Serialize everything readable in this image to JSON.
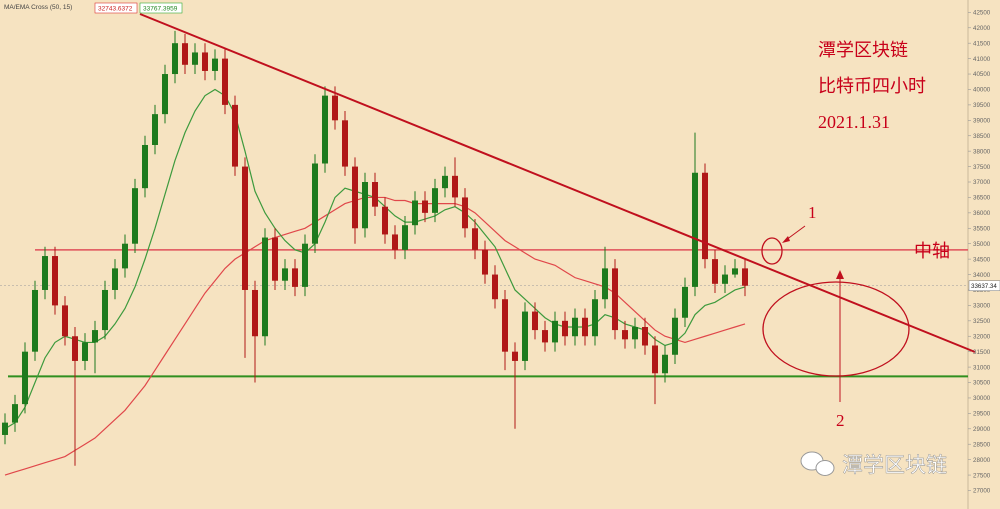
{
  "chart_data": {
    "type": "candlestick",
    "indicator_label": "MA/EMA Cross (50, 15)",
    "indicator_values": [
      32743.6372,
      33767.3959
    ],
    "title": "潭学区块链",
    "subtitle": "比特币四小时",
    "date": "2021.1.31",
    "mid_axis_label": "中轴",
    "mid_axis": 34800,
    "support": 30700,
    "callouts": [
      "1",
      "2"
    ],
    "watermark": "潭学区块链",
    "last_price": 33637.34,
    "up_color": "#1e7a1e",
    "down_color": "#b01818",
    "open": [
      28800,
      29200,
      29800,
      31500,
      33500,
      34600,
      33000,
      32000,
      31200,
      31800,
      32200,
      33500,
      34200,
      35000,
      36800,
      38200,
      39200,
      40500,
      41500,
      40800,
      41200,
      40600,
      41000,
      39500,
      37500,
      33500,
      32000,
      35200,
      33800,
      34200,
      33600,
      35000,
      37600,
      39800,
      39000,
      37500,
      35500,
      37000,
      36200,
      35300,
      34800,
      35600,
      36400,
      36000,
      36800,
      37200,
      36500,
      35500,
      34800,
      34000,
      33200,
      31500,
      31200,
      32800,
      32200,
      31800,
      32500,
      32000,
      32600,
      32000,
      33200,
      34200,
      32200,
      31900,
      32300,
      31700,
      30800,
      31400,
      32600,
      33600,
      37300,
      34500,
      33700,
      34000,
      34200
    ],
    "high": [
      29500,
      30100,
      31800,
      33800,
      34900,
      34900,
      33300,
      32300,
      32100,
      32500,
      33800,
      34500,
      35300,
      37100,
      38500,
      39500,
      40800,
      41900,
      41800,
      41500,
      41500,
      41300,
      41300,
      39800,
      37800,
      33800,
      35500,
      35500,
      34500,
      34500,
      35300,
      37900,
      40100,
      40100,
      39300,
      37800,
      37300,
      37300,
      36500,
      35600,
      35900,
      36700,
      36700,
      37100,
      37500,
      37800,
      36800,
      35800,
      35100,
      34300,
      33500,
      31800,
      33100,
      33100,
      32500,
      32800,
      32800,
      32900,
      32900,
      33500,
      34900,
      34500,
      32500,
      32600,
      32600,
      32000,
      31700,
      32900,
      33900,
      38600,
      37600,
      34800,
      34300,
      34500,
      34500
    ],
    "low": [
      28500,
      28900,
      29500,
      31200,
      33200,
      32700,
      31700,
      27800,
      30900,
      30800,
      31900,
      33200,
      33900,
      34700,
      36500,
      37900,
      38900,
      40200,
      40500,
      40500,
      40300,
      40300,
      39200,
      37200,
      31300,
      30500,
      31700,
      33500,
      33500,
      33300,
      33300,
      34700,
      37300,
      38700,
      37200,
      35000,
      35200,
      35900,
      35000,
      34500,
      34500,
      35300,
      35700,
      35700,
      36500,
      36200,
      35200,
      34500,
      33700,
      32900,
      30900,
      29000,
      30900,
      31900,
      31500,
      31500,
      31700,
      31700,
      31700,
      31700,
      32900,
      31900,
      31600,
      31600,
      31400,
      29800,
      30500,
      31100,
      32300,
      33300,
      34200,
      33400,
      33400,
      33900,
      33300
    ],
    "close": [
      29200,
      29800,
      31500,
      33500,
      34600,
      33000,
      32000,
      31200,
      31800,
      32200,
      33500,
      34200,
      35000,
      36800,
      38200,
      39200,
      40500,
      41500,
      40800,
      41200,
      40600,
      41000,
      39500,
      37500,
      33500,
      32000,
      35200,
      33800,
      34200,
      33600,
      35000,
      37600,
      39800,
      39000,
      37500,
      35500,
      37000,
      36200,
      35300,
      34800,
      35600,
      36400,
      36000,
      36800,
      37200,
      36500,
      35500,
      34800,
      34000,
      33200,
      31500,
      31200,
      32800,
      32200,
      31800,
      32500,
      32000,
      32600,
      32000,
      33200,
      34200,
      32200,
      31900,
      32300,
      31700,
      30800,
      31400,
      32600,
      33600,
      37300,
      34500,
      33700,
      34000,
      34200,
      33637
    ],
    "ema_fast": {
      "color": "#3d9a3d",
      "values": [
        29000,
        29200,
        29700,
        30500,
        31300,
        31800,
        32000,
        31900,
        31800,
        31800,
        32000,
        32400,
        32900,
        33600,
        34500,
        35500,
        36600,
        37700,
        38600,
        39300,
        39800,
        40000,
        39800,
        39200,
        38000,
        36700,
        36000,
        35500,
        35100,
        34800,
        34700,
        35000,
        35700,
        36500,
        36800,
        36700,
        36600,
        36500,
        36200,
        35900,
        35700,
        35700,
        35800,
        35900,
        36100,
        36200,
        36000,
        35700,
        35300,
        34900,
        34200,
        33500,
        33200,
        32900,
        32600,
        32400,
        32300,
        32300,
        32300,
        32400,
        32700,
        32600,
        32400,
        32300,
        32200,
        31900,
        31700,
        31800,
        32100,
        32700,
        33000,
        33100,
        33300,
        33500,
        33600
      ]
    },
    "ma_slow": {
      "color": "#e0474a",
      "values": [
        27500,
        27600,
        27700,
        27800,
        27900,
        28000,
        28100,
        28300,
        28500,
        28700,
        29000,
        29300,
        29600,
        30000,
        30400,
        30900,
        31400,
        31900,
        32400,
        32900,
        33400,
        33800,
        34200,
        34500,
        34700,
        34900,
        35100,
        35200,
        35300,
        35400,
        35500,
        35700,
        35900,
        36100,
        36300,
        36400,
        36500,
        36500,
        36500,
        36400,
        36400,
        36300,
        36300,
        36300,
        36300,
        36300,
        36200,
        36000,
        35700,
        35400,
        35100,
        34900,
        34700,
        34500,
        34400,
        34300,
        34100,
        33900,
        33800,
        33700,
        33600,
        33400,
        33100,
        32800,
        32500,
        32200,
        32000,
        31900,
        31800,
        31900,
        32000,
        32100,
        32200,
        32300,
        32400
      ]
    },
    "ylim": [
      26400,
      42900
    ],
    "yticks": [
      27000,
      27500,
      28000,
      28500,
      29000,
      29500,
      30000,
      30500,
      31000,
      31500,
      32000,
      32500,
      33000,
      33500,
      34000,
      34500,
      35000,
      35500,
      36000,
      36500,
      37000,
      37500,
      38000,
      38500,
      39000,
      39500,
      40000,
      40500,
      41000,
      41500,
      42000,
      42500
    ]
  }
}
